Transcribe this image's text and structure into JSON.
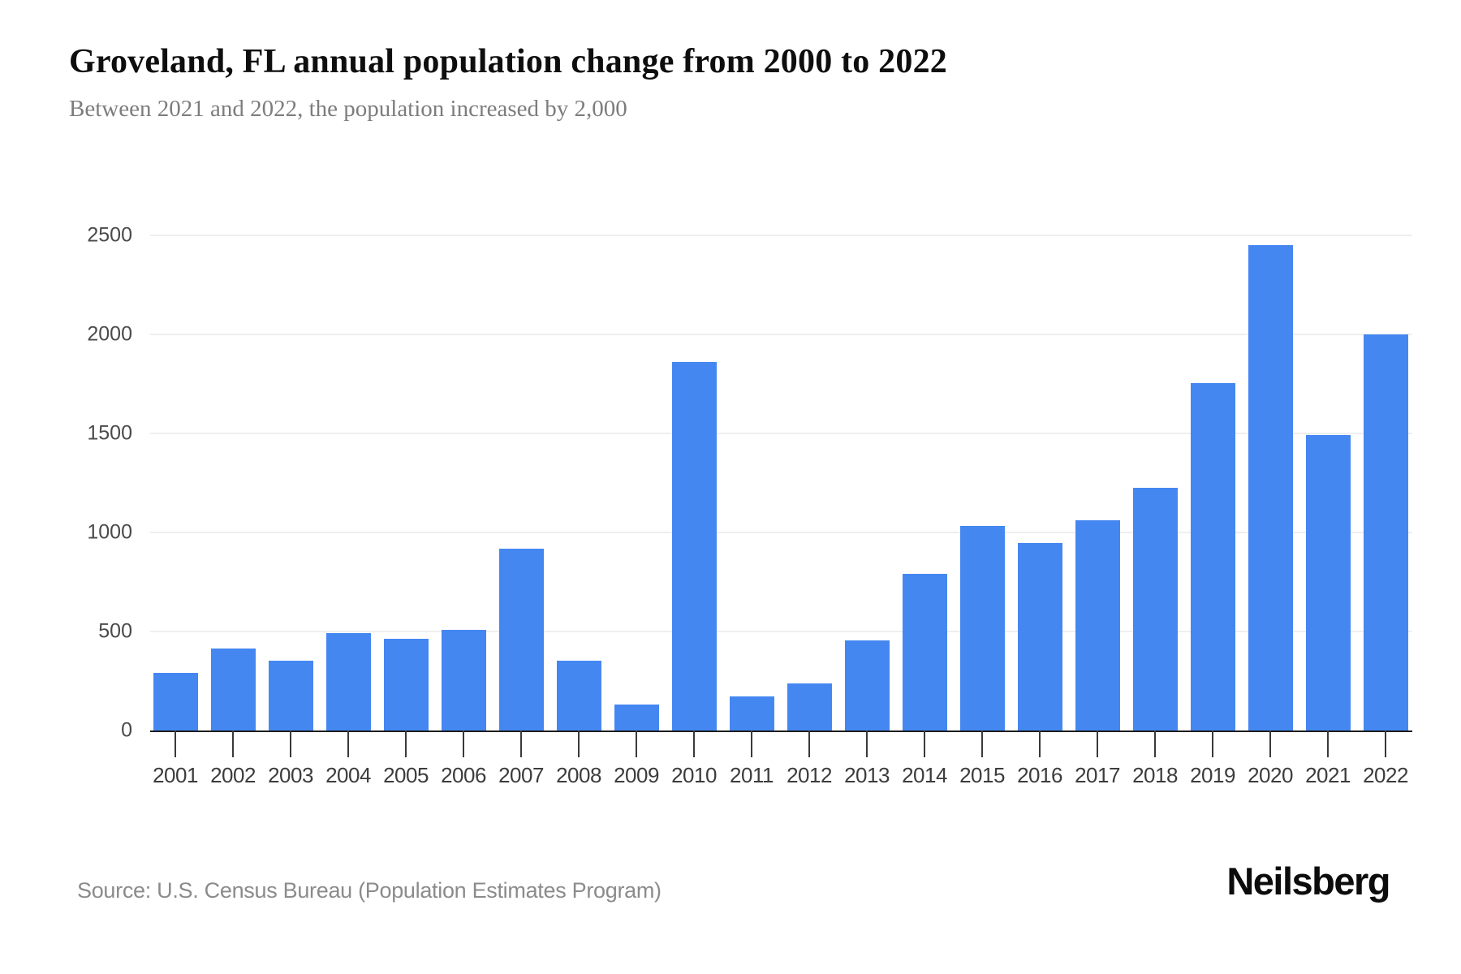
{
  "header": {
    "title": "Groveland, FL annual population change from 2000 to 2022",
    "subtitle": "Between 2021 and 2022, the population increased by 2,000"
  },
  "footer": {
    "source": "Source: U.S. Census Bureau (Population Estimates Program)",
    "brand": "Neilsberg"
  },
  "chart_data": {
    "type": "bar",
    "title": "Groveland, FL annual population change from 2000 to 2022",
    "subtitle": "Between 2021 and 2022, the population increased by 2,000",
    "categories": [
      "2001",
      "2002",
      "2003",
      "2004",
      "2005",
      "2006",
      "2007",
      "2008",
      "2009",
      "2010",
      "2011",
      "2012",
      "2013",
      "2014",
      "2015",
      "2016",
      "2017",
      "2018",
      "2019",
      "2020",
      "2021",
      "2022"
    ],
    "values": [
      292,
      412,
      354,
      492,
      462,
      510,
      920,
      352,
      130,
      1860,
      172,
      237,
      455,
      790,
      1032,
      946,
      1060,
      1224,
      1756,
      2452,
      1490,
      2000
    ],
    "xlabel": "",
    "ylabel": "",
    "ylim": [
      0,
      2500
    ],
    "y_ticks": [
      0,
      500,
      1000,
      1500,
      2000,
      2500
    ],
    "grid": true,
    "legend": false,
    "bar_color": "#4587f1",
    "axis_line_color": "#1c1c1c",
    "gridline_color": "#efefef"
  }
}
